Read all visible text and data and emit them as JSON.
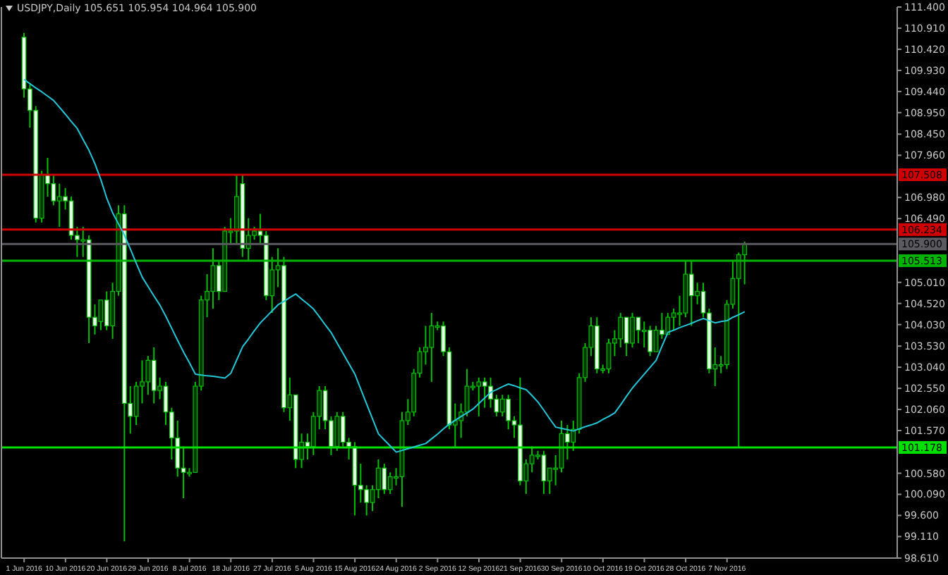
{
  "chart_data": {
    "type": "candlestick",
    "title": "USDJPY,Daily 105.651 105.954 104.964 105.900",
    "color": "#00c000",
    "categories": [
      "1 Jun 2016",
      null,
      null,
      null,
      null,
      null,
      null,
      "10 Jun 2016",
      null,
      null,
      null,
      null,
      null,
      null,
      "20 Jun 2016",
      null,
      null,
      null,
      null,
      null,
      null,
      "29 Jun 2016",
      null,
      null,
      null,
      null,
      null,
      null,
      "8 Jul 2016",
      null,
      null,
      null,
      null,
      null,
      null,
      "18 Jul 2016",
      null,
      null,
      null,
      null,
      null,
      null,
      "27 Jul 2016",
      null,
      null,
      null,
      null,
      null,
      null,
      "5 Aug 2016",
      null,
      null,
      null,
      null,
      null,
      null,
      "15 Aug 2016",
      null,
      null,
      null,
      null,
      null,
      null,
      "24 Aug 2016",
      null,
      null,
      null,
      null,
      null,
      null,
      "2 Sep 2016",
      null,
      null,
      null,
      null,
      null,
      null,
      "12 Sep 2016",
      null,
      null,
      null,
      null,
      null,
      null,
      "21 Sep 2016",
      null,
      null,
      null,
      null,
      null,
      null,
      "30 Sep 2016",
      null,
      null,
      null,
      null,
      null,
      null,
      "10 Oct 2016",
      null,
      null,
      null,
      null,
      null,
      null,
      "19 Oct 2016",
      null,
      null,
      null,
      null,
      null,
      null,
      "28 Oct 2016",
      null,
      null,
      null,
      null,
      null,
      null,
      "7 Nov 2016",
      null,
      null,
      null
    ],
    "ohlc": [
      [
        110.7,
        110.8,
        109.3,
        109.5
      ],
      [
        109.5,
        109.6,
        108.6,
        109.0
      ],
      [
        109.0,
        109.1,
        106.4,
        106.5
      ],
      [
        106.5,
        107.6,
        106.4,
        107.5
      ],
      [
        107.5,
        107.9,
        107.0,
        107.3
      ],
      [
        107.3,
        107.5,
        106.8,
        106.9
      ],
      [
        106.9,
        107.3,
        106.3,
        107.0
      ],
      [
        107.0,
        107.2,
        106.7,
        106.9
      ],
      [
        106.9,
        107.0,
        106.0,
        106.1
      ],
      [
        106.1,
        106.3,
        105.6,
        106.0
      ],
      [
        106.0,
        106.3,
        105.6,
        106.0
      ],
      [
        106.0,
        106.1,
        103.6,
        104.2
      ],
      [
        104.2,
        104.5,
        103.8,
        104.0
      ],
      [
        104.1,
        104.6,
        103.9,
        104.6
      ],
      [
        104.6,
        104.8,
        103.9,
        104.0
      ],
      [
        104.0,
        105.0,
        103.7,
        104.8
      ],
      [
        104.8,
        106.8,
        104.7,
        106.6
      ],
      [
        106.6,
        106.8,
        99.0,
        102.2
      ],
      [
        102.2,
        102.6,
        101.5,
        101.9
      ],
      [
        101.9,
        102.7,
        101.7,
        102.6
      ],
      [
        102.6,
        103.2,
        102.2,
        102.7
      ],
      [
        102.7,
        103.3,
        102.4,
        103.2
      ],
      [
        103.2,
        103.5,
        102.2,
        102.5
      ],
      [
        102.5,
        102.8,
        102.3,
        102.6
      ],
      [
        102.6,
        102.7,
        101.7,
        102.0
      ],
      [
        102.0,
        102.1,
        100.9,
        101.4
      ],
      [
        101.4,
        101.8,
        100.5,
        100.7
      ],
      [
        100.7,
        101.2,
        100.0,
        100.6
      ],
      [
        100.6,
        100.7,
        100.5,
        100.6
      ],
      [
        100.6,
        102.7,
        100.6,
        102.6
      ],
      [
        102.6,
        104.7,
        102.5,
        104.6
      ],
      [
        104.6,
        105.2,
        104.2,
        104.8
      ],
      [
        104.8,
        105.8,
        104.4,
        105.4
      ],
      [
        105.4,
        105.5,
        104.6,
        104.8
      ],
      [
        104.8,
        106.3,
        104.8,
        106.2
      ],
      [
        106.2,
        106.5,
        105.9,
        106.2
      ],
      [
        106.2,
        107.5,
        105.9,
        107.0
      ],
      [
        107.3,
        107.5,
        105.6,
        105.8
      ],
      [
        105.8,
        106.5,
        105.5,
        106.1
      ],
      [
        106.1,
        106.3,
        106.0,
        106.2
      ],
      [
        106.2,
        106.6,
        105.9,
        106.1
      ],
      [
        106.1,
        106.2,
        104.6,
        104.7
      ],
      [
        104.7,
        105.6,
        104.3,
        105.3
      ],
      [
        105.3,
        105.8,
        104.9,
        105.4
      ],
      [
        105.4,
        105.6,
        102.0,
        102.1
      ],
      [
        102.1,
        102.8,
        101.8,
        102.4
      ],
      [
        102.4,
        102.4,
        100.7,
        100.9
      ],
      [
        100.9,
        101.5,
        100.7,
        101.3
      ],
      [
        101.3,
        101.5,
        100.9,
        101.2
      ],
      [
        101.2,
        102.0,
        101.0,
        101.9
      ],
      [
        101.9,
        102.6,
        101.6,
        102.5
      ],
      [
        102.5,
        102.6,
        101.6,
        101.8
      ],
      [
        101.8,
        101.9,
        101.0,
        101.2
      ],
      [
        101.2,
        102.0,
        101.1,
        101.9
      ],
      [
        101.9,
        102.0,
        101.2,
        101.3
      ],
      [
        101.3,
        101.4,
        100.9,
        101.2
      ],
      [
        101.2,
        101.3,
        99.6,
        100.3
      ],
      [
        100.3,
        100.8,
        99.9,
        100.2
      ],
      [
        100.2,
        100.3,
        99.6,
        99.9
      ],
      [
        99.9,
        100.3,
        99.7,
        100.2
      ],
      [
        100.2,
        100.9,
        100.0,
        100.7
      ],
      [
        100.7,
        100.8,
        100.1,
        100.2
      ],
      [
        100.2,
        100.6,
        100.1,
        100.5
      ],
      [
        100.5,
        100.7,
        100.3,
        100.5
      ],
      [
        100.5,
        102.0,
        99.8,
        101.8
      ],
      [
        101.8,
        102.3,
        101.7,
        102.0
      ],
      [
        102.0,
        103.0,
        101.9,
        102.9
      ],
      [
        102.9,
        103.5,
        102.8,
        103.4
      ],
      [
        103.4,
        104.0,
        103.1,
        103.5
      ],
      [
        103.5,
        104.3,
        102.7,
        104.0
      ],
      [
        104.0,
        104.1,
        103.9,
        104.0
      ],
      [
        104.0,
        104.1,
        103.3,
        103.4
      ],
      [
        103.4,
        103.5,
        101.6,
        101.7
      ],
      [
        101.7,
        102.2,
        101.2,
        101.8
      ],
      [
        101.8,
        102.2,
        101.4,
        102.0
      ],
      [
        102.0,
        103.0,
        101.9,
        102.6
      ],
      [
        102.6,
        102.7,
        102.5,
        102.6
      ],
      [
        102.6,
        102.8,
        101.9,
        102.7
      ],
      [
        102.7,
        102.8,
        102.1,
        102.6
      ],
      [
        102.6,
        102.8,
        102.1,
        102.3
      ],
      [
        102.3,
        102.4,
        101.9,
        102.0
      ],
      [
        102.0,
        102.4,
        101.9,
        102.3
      ],
      [
        102.3,
        102.4,
        101.6,
        101.8
      ],
      [
        101.8,
        101.9,
        101.4,
        101.7
      ],
      [
        101.7,
        102.8,
        100.3,
        100.4
      ],
      [
        100.4,
        100.9,
        100.1,
        100.8
      ],
      [
        100.8,
        101.2,
        100.6,
        101.0
      ],
      [
        101.0,
        101.1,
        100.9,
        101.0
      ],
      [
        101.0,
        101.1,
        100.1,
        100.4
      ],
      [
        100.4,
        100.7,
        100.1,
        100.7
      ],
      [
        100.7,
        101.0,
        100.3,
        100.7
      ],
      [
        100.7,
        101.8,
        100.6,
        101.5
      ],
      [
        101.5,
        101.7,
        100.9,
        101.3
      ],
      [
        101.3,
        101.8,
        101.1,
        101.6
      ],
      [
        101.6,
        102.9,
        101.5,
        102.8
      ],
      [
        102.8,
        103.6,
        102.7,
        103.5
      ],
      [
        103.5,
        104.2,
        103.3,
        104.0
      ],
      [
        104.0,
        104.2,
        102.9,
        103.0
      ],
      [
        103.0,
        103.1,
        102.9,
        103.0
      ],
      [
        103.0,
        103.7,
        102.9,
        103.6
      ],
      [
        103.6,
        103.9,
        103.3,
        103.7
      ],
      [
        103.7,
        104.3,
        103.5,
        104.2
      ],
      [
        104.2,
        104.2,
        103.3,
        103.6
      ],
      [
        103.6,
        104.3,
        103.5,
        104.2
      ],
      [
        104.2,
        104.2,
        103.6,
        103.9
      ],
      [
        103.9,
        104.1,
        103.5,
        103.9
      ],
      [
        103.9,
        104.0,
        103.3,
        103.4
      ],
      [
        103.4,
        104.0,
        103.4,
        103.9
      ],
      [
        103.9,
        104.3,
        103.7,
        103.8
      ],
      [
        103.8,
        104.3,
        103.8,
        104.2
      ],
      [
        104.2,
        104.4,
        103.9,
        104.3
      ],
      [
        104.3,
        104.7,
        104.0,
        104.3
      ],
      [
        104.3,
        105.5,
        104.2,
        105.2
      ],
      [
        105.2,
        105.5,
        104.0,
        104.7
      ],
      [
        104.7,
        105.0,
        104.5,
        104.8
      ],
      [
        104.8,
        105.0,
        104.2,
        104.3
      ],
      [
        104.3,
        104.4,
        102.9,
        103.0
      ],
      [
        103.0,
        103.5,
        102.6,
        103.1
      ],
      [
        103.1,
        103.3,
        102.9,
        103.1
      ],
      [
        103.1,
        104.6,
        103.0,
        104.5
      ],
      [
        104.5,
        105.5,
        104.4,
        105.1
      ],
      [
        105.1,
        105.7,
        101.2,
        105.65
      ],
      [
        105.651,
        105.954,
        104.964,
        105.9
      ]
    ],
    "series": [
      {
        "type": "line",
        "color": "#20c8d8",
        "values": [
          109.72,
          109.62,
          109.52,
          109.43,
          109.33,
          109.23,
          109.07,
          108.91,
          108.74,
          108.58,
          108.32,
          108.07,
          107.76,
          107.39,
          106.96,
          106.62,
          106.36,
          106.1,
          105.78,
          105.45,
          105.13,
          104.91,
          104.69,
          104.48,
          104.22,
          103.94,
          103.66,
          103.39,
          103.14,
          102.88,
          102.86,
          102.84,
          102.83,
          102.81,
          102.79,
          102.9,
          103.21,
          103.52,
          103.7,
          103.89,
          104.07,
          104.21,
          104.35,
          104.49,
          104.57,
          104.66,
          104.74,
          104.62,
          104.51,
          104.39,
          104.21,
          104.02,
          103.84,
          103.6,
          103.36,
          103.12,
          102.88,
          102.53,
          102.18,
          101.84,
          101.49,
          101.35,
          101.21,
          101.07,
          101.11,
          101.15,
          101.19,
          101.23,
          101.27,
          101.38,
          101.49,
          101.61,
          101.72,
          101.81,
          101.9,
          101.98,
          102.07,
          102.2,
          102.33,
          102.46,
          102.52,
          102.59,
          102.65,
          102.61,
          102.56,
          102.52,
          102.38,
          102.23,
          102.04,
          101.84,
          101.65,
          101.62,
          101.59,
          101.56,
          101.61,
          101.66,
          101.7,
          101.75,
          101.83,
          101.9,
          101.98,
          102.17,
          102.37,
          102.56,
          102.72,
          102.88,
          103.04,
          103.2,
          103.53,
          103.85,
          103.9,
          103.96,
          104.01,
          104.06,
          104.12,
          104.17,
          104.12,
          104.07,
          104.1,
          104.12,
          104.2,
          104.26,
          104.33
        ]
      }
    ],
    "ylim": [
      98.61,
      111.4
    ],
    "yticks": [
      {
        "value": 111.4,
        "label": "111.400"
      },
      {
        "value": 110.91,
        "label": "110.910"
      },
      {
        "value": 110.42,
        "label": "110.420"
      },
      {
        "value": 109.93,
        "label": "109.930"
      },
      {
        "value": 109.44,
        "label": "109.440"
      },
      {
        "value": 108.95,
        "label": "108.950"
      },
      {
        "value": 108.45,
        "label": "108.450"
      },
      {
        "value": 107.96,
        "label": "107.960"
      },
      {
        "value": 106.98,
        "label": "106.980"
      },
      {
        "value": 106.49,
        "label": "106.490"
      },
      {
        "value": 105.01,
        "label": "105.010"
      },
      {
        "value": 104.52,
        "label": "104.520"
      },
      {
        "value": 104.03,
        "label": "104.030"
      },
      {
        "value": 103.53,
        "label": "103.530"
      },
      {
        "value": 103.04,
        "label": "103.040"
      },
      {
        "value": 102.55,
        "label": "102.550"
      },
      {
        "value": 102.06,
        "label": "102.060"
      },
      {
        "value": 101.57,
        "label": "101.570"
      },
      {
        "value": 100.58,
        "label": "100.580"
      },
      {
        "value": 100.09,
        "label": "100.090"
      },
      {
        "value": 99.6,
        "label": "99.600"
      },
      {
        "value": 99.11,
        "label": "99.110"
      },
      {
        "value": 98.61,
        "label": "98.610"
      }
    ],
    "ref_lines": [
      {
        "axis": "y",
        "value": 107.508,
        "label": "107.508",
        "color": "#d00000"
      },
      {
        "axis": "y",
        "value": 106.234,
        "label": "106.234",
        "color": "#d00000"
      },
      {
        "axis": "y",
        "value": 105.9,
        "label": "105.900",
        "color": "#5a5a60"
      },
      {
        "axis": "y",
        "value": 105.513,
        "label": "105.513",
        "color": "#00b400"
      },
      {
        "axis": "y",
        "value": 101.178,
        "label": "101.178",
        "color": "#00e000"
      }
    ]
  }
}
